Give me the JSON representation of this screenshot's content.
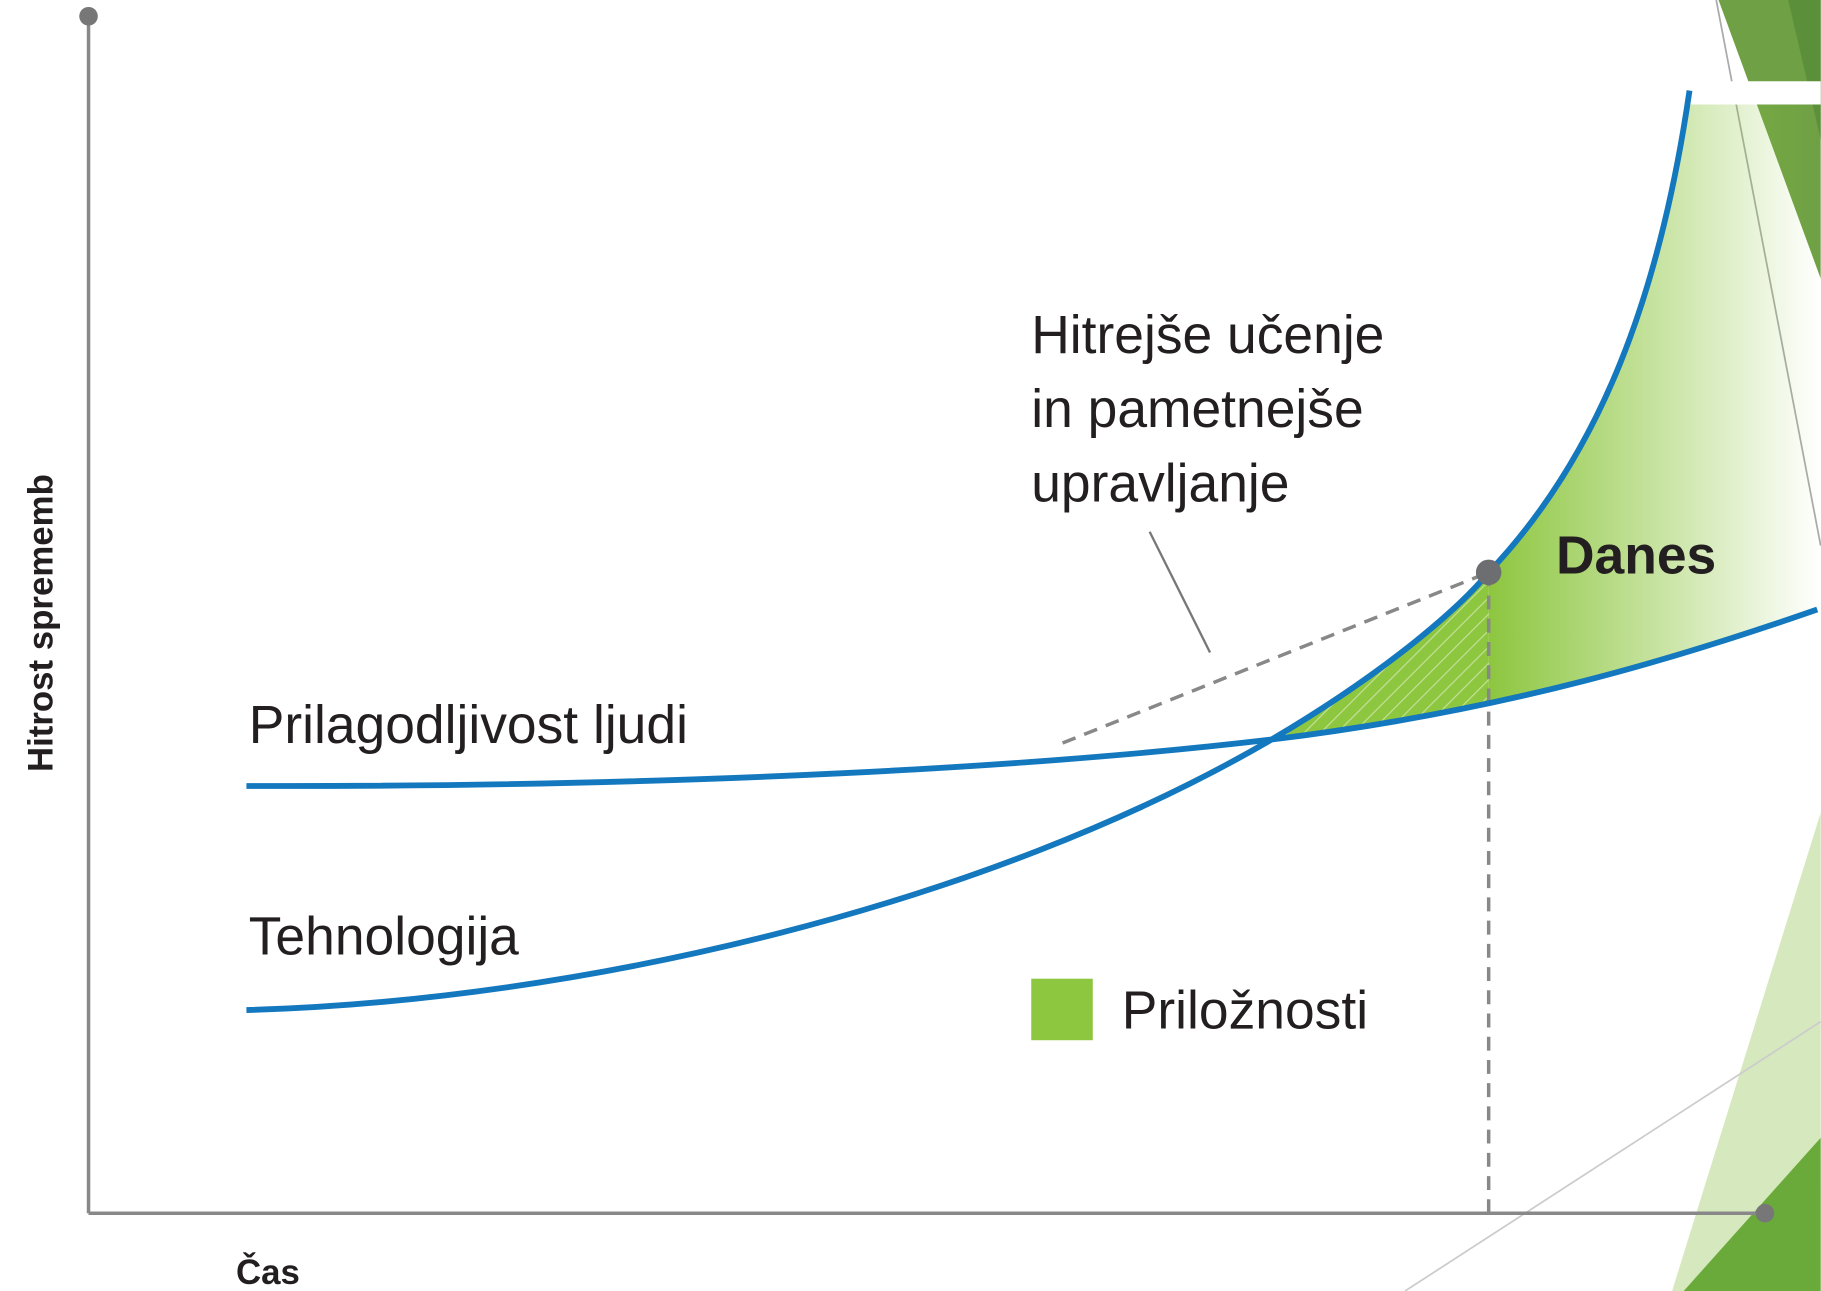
{
  "axes": {
    "y_label": "Hitrost sprememb",
    "x_label": "Čas"
  },
  "curves": [
    {
      "label": "Prilagodljivost ljudi"
    },
    {
      "label": "Tehnologija"
    }
  ],
  "annotation": {
    "lines": [
      "Hitrejše učenje",
      "in pametnejše",
      "upravljanje"
    ]
  },
  "marker_label": "Danes",
  "legend": {
    "label": "Priložnosti"
  }
}
